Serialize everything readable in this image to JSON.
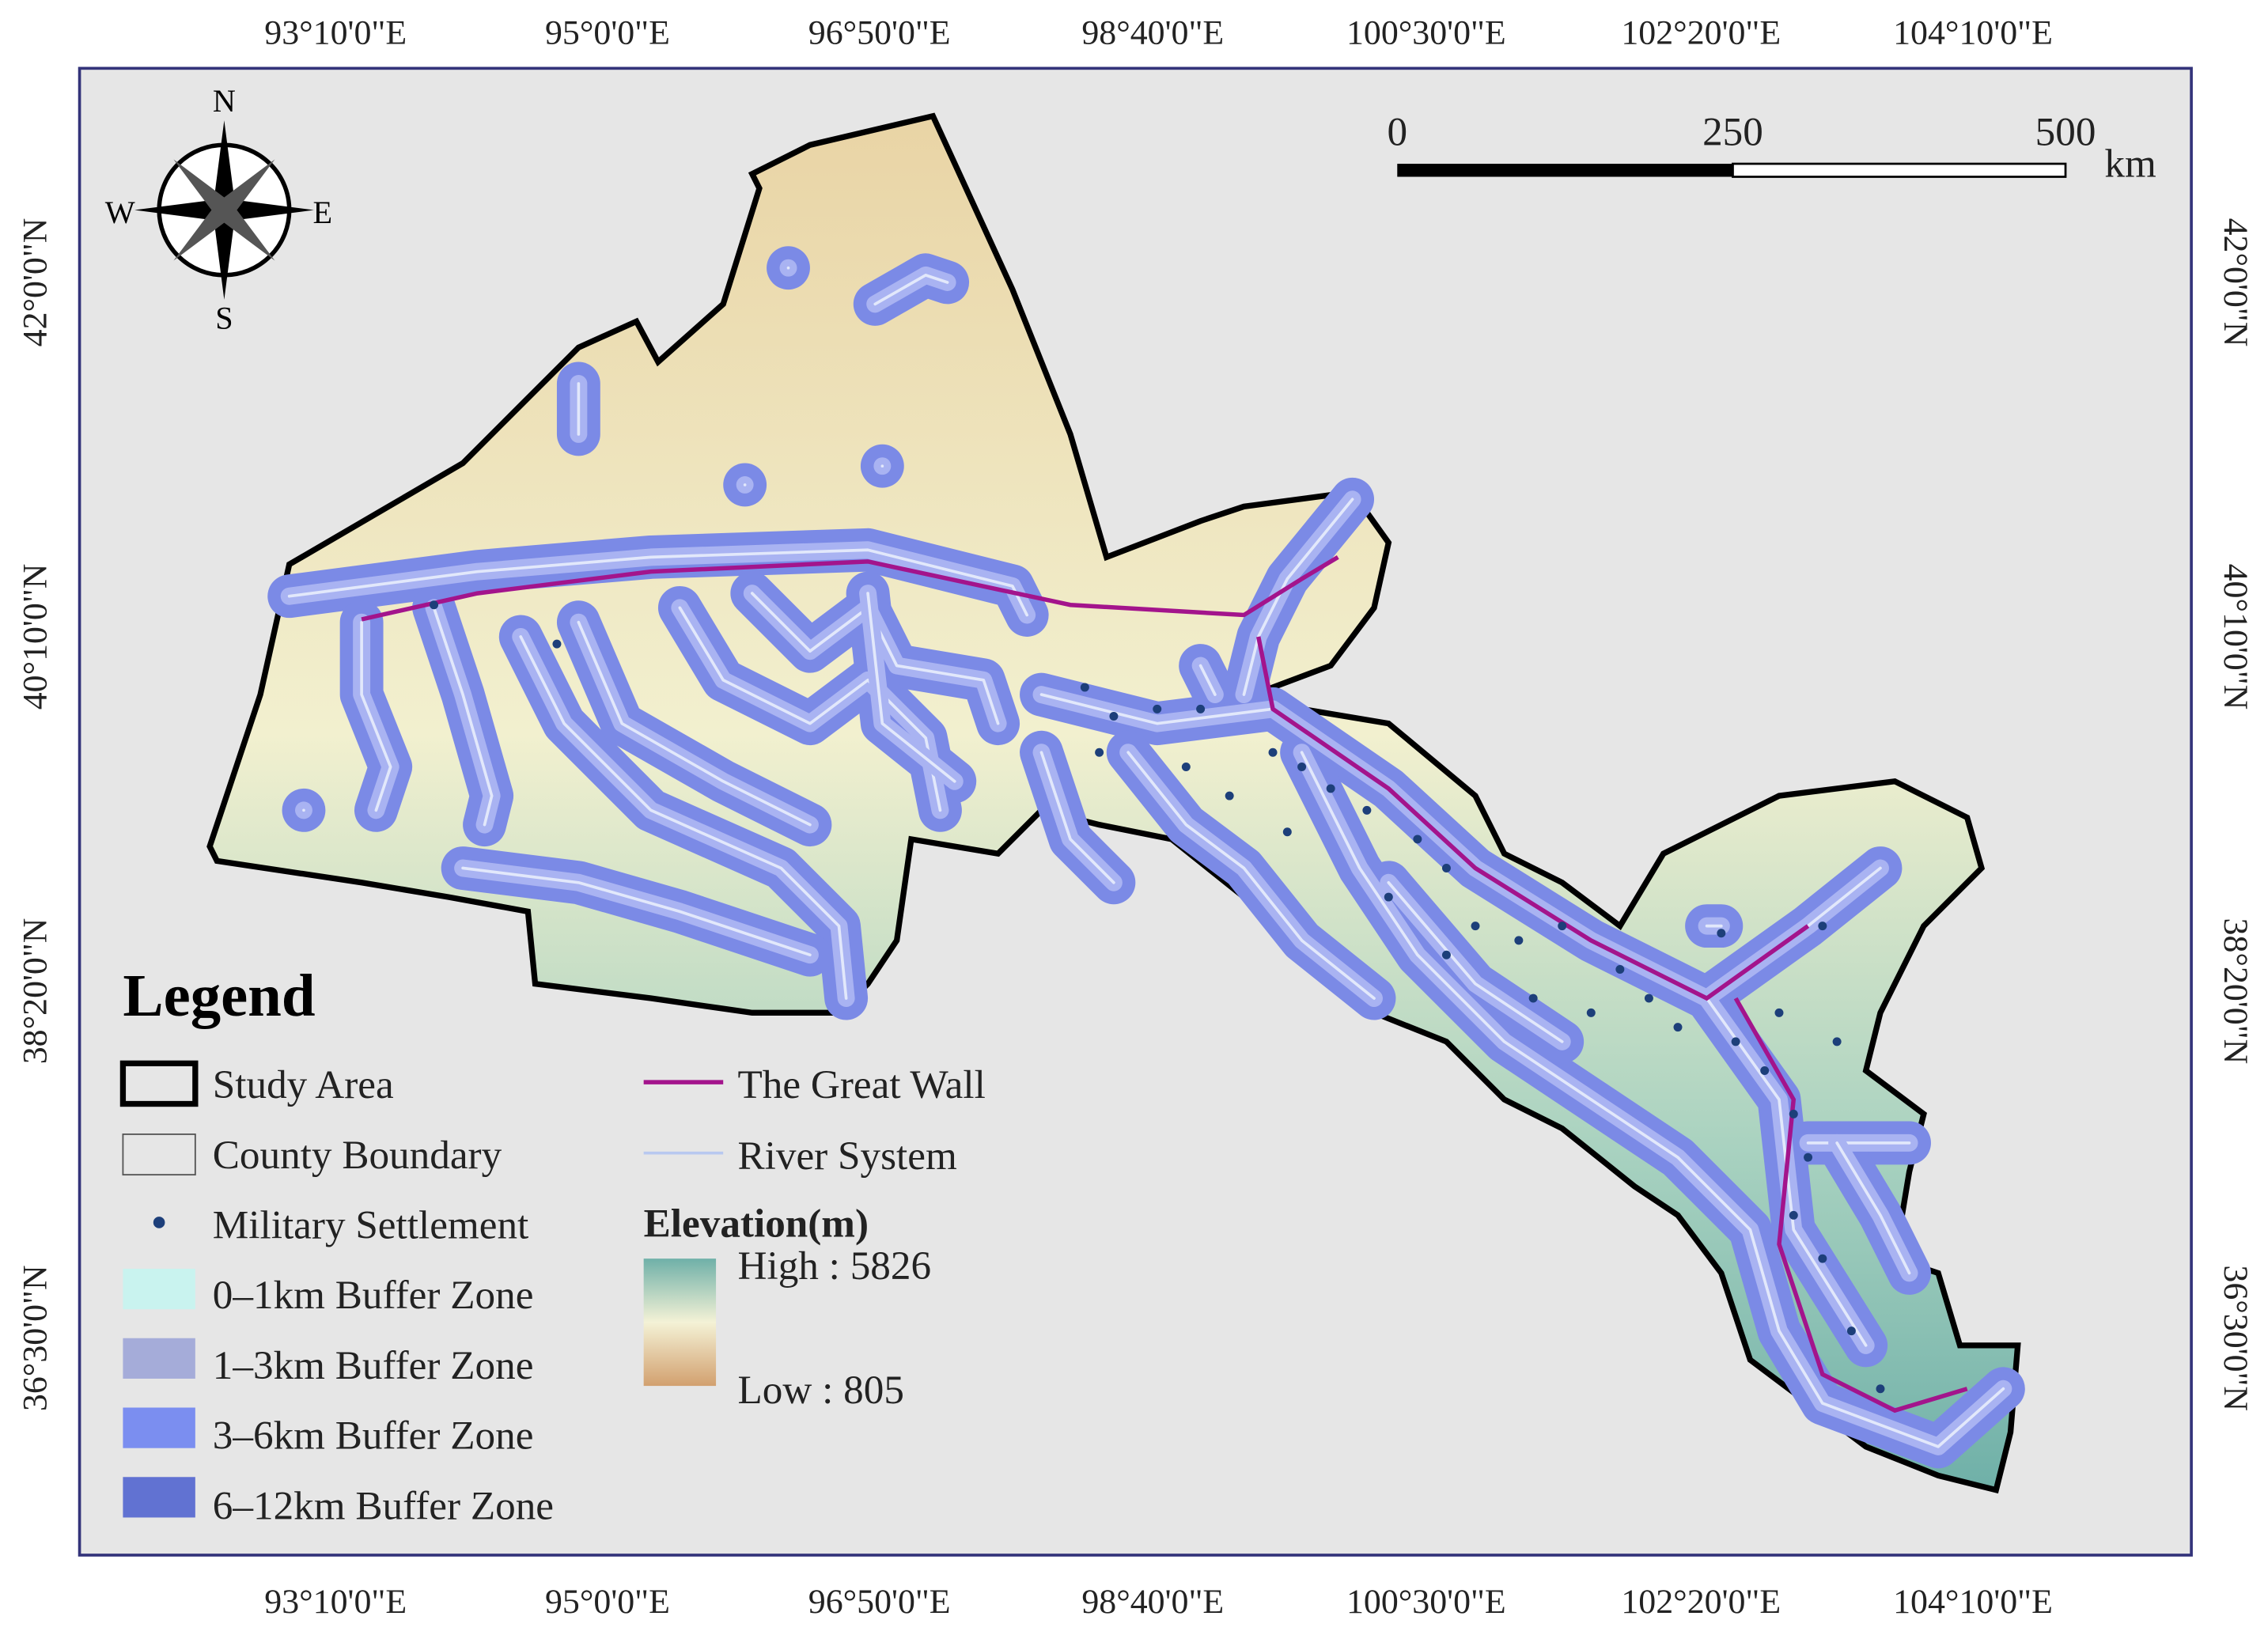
{
  "longitude_labels": [
    "93°10'0\"E",
    "95°0'0\"E",
    "96°50'0\"E",
    "98°40'0\"E",
    "100°30'0\"E",
    "102°20'0\"E",
    "104°10'0\"E"
  ],
  "latitude_labels": [
    "42°0'0\"N",
    "40°10'0\"N",
    "38°20'0\"N",
    "36°30'0\"N"
  ],
  "compass": {
    "north": "N",
    "south": "S",
    "east": "E",
    "west": "W"
  },
  "scale_bar": {
    "labels": [
      "0",
      "250",
      "500"
    ],
    "unit": "km"
  },
  "legend": {
    "title": "Legend",
    "items": [
      "Study Area",
      "County Boundary",
      "Military Settlement",
      "0–1km Buffer Zone",
      "1–3km Buffer Zone",
      "3–6km Buffer Zone",
      "6–12km Buffer Zone"
    ],
    "items_right": [
      "The Great Wall",
      "River System"
    ],
    "elevation": {
      "title": "Elevation(m)",
      "high": "High : 5826",
      "low": "Low : 805"
    }
  }
}
